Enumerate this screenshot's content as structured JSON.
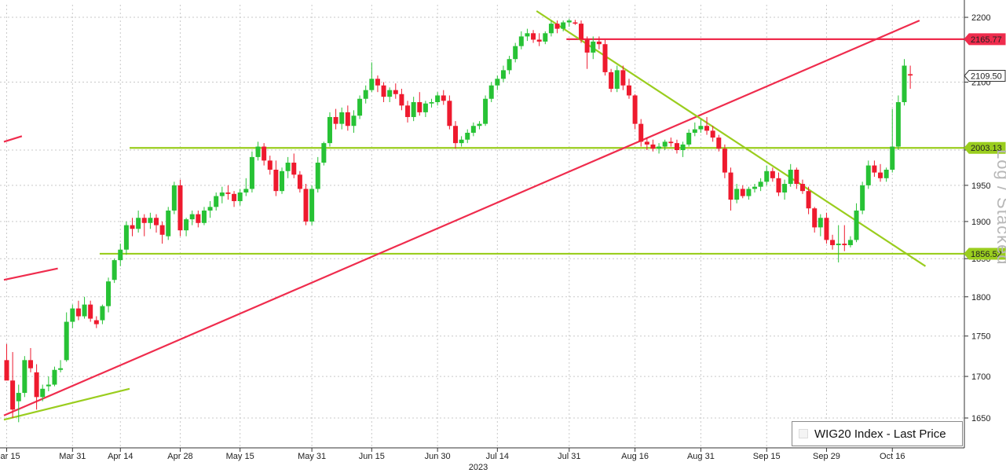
{
  "chart_data": {
    "type": "candlestick",
    "legend": "WIG20 Index - Last Price",
    "watermark": "Log / Stacked",
    "year_label": "2023",
    "y_ticks": [
      1650,
      1700,
      1750,
      1800,
      1850,
      1900,
      1950,
      2000,
      2100,
      2200
    ],
    "x_ticks": [
      {
        "label": "Mar 15",
        "i": 0
      },
      {
        "label": "Mar 31",
        "i": 11
      },
      {
        "label": "Apr 14",
        "i": 19
      },
      {
        "label": "Apr 28",
        "i": 29
      },
      {
        "label": "May 15",
        "i": 39
      },
      {
        "label": "May 31",
        "i": 51
      },
      {
        "label": "Jun 15",
        "i": 61
      },
      {
        "label": "Jun 30",
        "i": 72
      },
      {
        "label": "Jul 14",
        "i": 82
      },
      {
        "label": "Jul 31",
        "i": 94
      },
      {
        "label": "Aug 16",
        "i": 105
      },
      {
        "label": "Aug 31",
        "i": 116
      },
      {
        "label": "Sep 15",
        "i": 127
      },
      {
        "label": "Sep 29",
        "i": 137
      },
      {
        "label": "Oct 16",
        "i": 148
      }
    ],
    "ylim": [
      1615,
      2220
    ],
    "price_tags": [
      {
        "value": 2165.77,
        "label": "2165.77",
        "color": "#ef2c4d"
      },
      {
        "value": 2109.5,
        "label": "2109.50",
        "color": "#ffffff"
      },
      {
        "value": 2003.13,
        "label": "2003.13",
        "color": "#9acd1e"
      },
      {
        "value": 1856.52,
        "label": "1856.52",
        "color": "#9acd1e"
      }
    ],
    "hlines": [
      {
        "value": 2165.77,
        "i_from": 94,
        "color": "#ef2c4d"
      },
      {
        "value": 2003.13,
        "i_from": 21,
        "color": "#9acd1e"
      },
      {
        "value": 1856.52,
        "i_from": 16,
        "color": "#9acd1e"
      }
    ],
    "trendlines": [
      {
        "i1": 0,
        "v1": 1653,
        "i2": 153,
        "v2": 2195,
        "color": "#ef2c4d"
      },
      {
        "i1": 89,
        "v1": 2210,
        "i2": 154,
        "v2": 1840,
        "color": "#9acd1e"
      },
      {
        "i1": 0,
        "v1": 2012,
        "i2": 3,
        "v2": 2020,
        "color": "#ef2c4d"
      },
      {
        "i1": 0,
        "v1": 1822,
        "i2": 9,
        "v2": 1837,
        "color": "#ef2c4d"
      },
      {
        "i1": 0,
        "v1": 1648,
        "i2": 21,
        "v2": 1685,
        "color": "#9acd1e"
      }
    ],
    "candles": [
      [
        1720,
        1740,
        1700,
        1695
      ],
      [
        1695,
        1730,
        1650,
        1660
      ],
      [
        1670,
        1690,
        1645,
        1680
      ],
      [
        1680,
        1725,
        1675,
        1720
      ],
      [
        1720,
        1735,
        1705,
        1710
      ],
      [
        1705,
        1715,
        1660,
        1675
      ],
      [
        1675,
        1690,
        1670,
        1685
      ],
      [
        1688,
        1700,
        1682,
        1690
      ],
      [
        1690,
        1712,
        1688,
        1708
      ],
      [
        1708,
        1720,
        1705,
        1710
      ],
      [
        1720,
        1780,
        1718,
        1768
      ],
      [
        1768,
        1790,
        1760,
        1785
      ],
      [
        1785,
        1795,
        1770,
        1775
      ],
      [
        1775,
        1800,
        1772,
        1790
      ],
      [
        1790,
        1795,
        1768,
        1772
      ],
      [
        1770,
        1775,
        1760,
        1765
      ],
      [
        1770,
        1790,
        1765,
        1788
      ],
      [
        1788,
        1825,
        1780,
        1820
      ],
      [
        1822,
        1850,
        1818,
        1848
      ],
      [
        1848,
        1870,
        1840,
        1862
      ],
      [
        1862,
        1900,
        1855,
        1895
      ],
      [
        1895,
        1905,
        1880,
        1890
      ],
      [
        1890,
        1915,
        1885,
        1905
      ],
      [
        1905,
        1910,
        1880,
        1898
      ],
      [
        1898,
        1912,
        1890,
        1905
      ],
      [
        1905,
        1910,
        1885,
        1895
      ],
      [
        1895,
        1900,
        1870,
        1882
      ],
      [
        1880,
        1920,
        1875,
        1915
      ],
      [
        1915,
        1955,
        1910,
        1950
      ],
      [
        1950,
        1958,
        1880,
        1888
      ],
      [
        1888,
        1905,
        1880,
        1903
      ],
      [
        1903,
        1915,
        1895,
        1910
      ],
      [
        1910,
        1915,
        1892,
        1898
      ],
      [
        1898,
        1920,
        1895,
        1915
      ],
      [
        1915,
        1928,
        1905,
        1920
      ],
      [
        1920,
        1940,
        1915,
        1935
      ],
      [
        1935,
        1948,
        1925,
        1940
      ],
      [
        1940,
        1950,
        1930,
        1938
      ],
      [
        1938,
        1942,
        1920,
        1928
      ],
      [
        1928,
        1945,
        1922,
        1940
      ],
      [
        1940,
        1960,
        1935,
        1945
      ],
      [
        1945,
        1998,
        1940,
        1990
      ],
      [
        1990,
        2012,
        1985,
        2005
      ],
      [
        2005,
        2010,
        1978,
        1985
      ],
      [
        1985,
        1992,
        1965,
        1972
      ],
      [
        1972,
        1985,
        1935,
        1942
      ],
      [
        1942,
        1975,
        1938,
        1970
      ],
      [
        1970,
        1990,
        1960,
        1982
      ],
      [
        1982,
        1995,
        1960,
        1965
      ],
      [
        1965,
        1970,
        1940,
        1945
      ],
      [
        1945,
        1952,
        1895,
        1900
      ],
      [
        1900,
        1950,
        1895,
        1945
      ],
      [
        1945,
        1990,
        1940,
        1982
      ],
      [
        1982,
        2012,
        1978,
        2010
      ],
      [
        2010,
        2055,
        2005,
        2048
      ],
      [
        2048,
        2060,
        2030,
        2038
      ],
      [
        2038,
        2062,
        2030,
        2055
      ],
      [
        2055,
        2065,
        2028,
        2035
      ],
      [
        2035,
        2058,
        2025,
        2050
      ],
      [
        2050,
        2080,
        2045,
        2075
      ],
      [
        2075,
        2095,
        2068,
        2088
      ],
      [
        2088,
        2130,
        2085,
        2105
      ],
      [
        2105,
        2110,
        2085,
        2095
      ],
      [
        2095,
        2100,
        2070,
        2078
      ],
      [
        2078,
        2092,
        2070,
        2088
      ],
      [
        2088,
        2098,
        2075,
        2082
      ],
      [
        2082,
        2090,
        2058,
        2065
      ],
      [
        2065,
        2072,
        2040,
        2048
      ],
      [
        2048,
        2078,
        2042,
        2070
      ],
      [
        2070,
        2085,
        2050,
        2055
      ],
      [
        2055,
        2072,
        2048,
        2068
      ],
      [
        2068,
        2075,
        2062,
        2070
      ],
      [
        2070,
        2085,
        2065,
        2080
      ],
      [
        2080,
        2088,
        2066,
        2072
      ],
      [
        2072,
        2080,
        2030,
        2035
      ],
      [
        2035,
        2042,
        2002,
        2010
      ],
      [
        2010,
        2020,
        2005,
        2015
      ],
      [
        2015,
        2030,
        2010,
        2025
      ],
      [
        2025,
        2040,
        2020,
        2035
      ],
      [
        2035,
        2042,
        2030,
        2038
      ],
      [
        2038,
        2080,
        2035,
        2075
      ],
      [
        2075,
        2100,
        2070,
        2095
      ],
      [
        2095,
        2110,
        2088,
        2105
      ],
      [
        2105,
        2125,
        2100,
        2118
      ],
      [
        2118,
        2140,
        2112,
        2135
      ],
      [
        2135,
        2160,
        2130,
        2155
      ],
      [
        2155,
        2178,
        2150,
        2170
      ],
      [
        2170,
        2182,
        2163,
        2175
      ],
      [
        2175,
        2180,
        2160,
        2165
      ],
      [
        2165,
        2175,
        2155,
        2162
      ],
      [
        2162,
        2178,
        2158,
        2175
      ],
      [
        2175,
        2195,
        2170,
        2190
      ],
      [
        2190,
        2195,
        2175,
        2182
      ],
      [
        2182,
        2195,
        2178,
        2192
      ],
      [
        2192,
        2198,
        2185,
        2195
      ],
      [
        2192,
        2196,
        2188,
        2190
      ],
      [
        2190,
        2195,
        2160,
        2165
      ],
      [
        2165,
        2170,
        2120,
        2145
      ],
      [
        2145,
        2170,
        2135,
        2162
      ],
      [
        2162,
        2170,
        2150,
        2158
      ],
      [
        2158,
        2165,
        2110,
        2115
      ],
      [
        2115,
        2120,
        2085,
        2090
      ],
      [
        2090,
        2125,
        2085,
        2118
      ],
      [
        2118,
        2125,
        2088,
        2095
      ],
      [
        2095,
        2105,
        2075,
        2080
      ],
      [
        2080,
        2082,
        2030,
        2038
      ],
      [
        2038,
        2045,
        2005,
        2012
      ],
      [
        2012,
        2018,
        2000,
        2008
      ],
      [
        2008,
        2015,
        1998,
        2002
      ],
      [
        2002,
        2010,
        1995,
        2005
      ],
      [
        2005,
        2015,
        2000,
        2012
      ],
      [
        2012,
        2018,
        2005,
        2010
      ],
      [
        2010,
        2015,
        1995,
        2000
      ],
      [
        2000,
        2012,
        1990,
        2008
      ],
      [
        2008,
        2030,
        2005,
        2025
      ],
      [
        2025,
        2040,
        2020,
        2030
      ],
      [
        2030,
        2045,
        2025,
        2035
      ],
      [
        2035,
        2048,
        2022,
        2028
      ],
      [
        2028,
        2035,
        2012,
        2018
      ],
      [
        2018,
        2022,
        1998,
        2002
      ],
      [
        2002,
        2008,
        1960,
        1968
      ],
      [
        1968,
        1975,
        1915,
        1930
      ],
      [
        1930,
        1952,
        1925,
        1945
      ],
      [
        1945,
        1950,
        1932,
        1935
      ],
      [
        1935,
        1948,
        1930,
        1945
      ],
      [
        1945,
        1952,
        1940,
        1948
      ],
      [
        1948,
        1960,
        1942,
        1955
      ],
      [
        1955,
        1978,
        1950,
        1970
      ],
      [
        1970,
        1975,
        1955,
        1960
      ],
      [
        1960,
        1968,
        1935,
        1940
      ],
      [
        1940,
        1958,
        1930,
        1952
      ],
      [
        1952,
        1980,
        1948,
        1972
      ],
      [
        1972,
        1975,
        1945,
        1952
      ],
      [
        1952,
        1958,
        1938,
        1942
      ],
      [
        1942,
        1948,
        1910,
        1918
      ],
      [
        1918,
        1920,
        1885,
        1892
      ],
      [
        1892,
        1910,
        1880,
        1905
      ],
      [
        1905,
        1912,
        1870,
        1875
      ],
      [
        1875,
        1882,
        1862,
        1868
      ],
      [
        1868,
        1895,
        1845,
        1870
      ],
      [
        1870,
        1895,
        1860,
        1868
      ],
      [
        1868,
        1880,
        1865,
        1875
      ],
      [
        1875,
        1925,
        1872,
        1915
      ],
      [
        1915,
        1955,
        1910,
        1950
      ],
      [
        1950,
        1985,
        1945,
        1978
      ],
      [
        1978,
        1985,
        1962,
        1968
      ],
      [
        1968,
        1980,
        1955,
        1960
      ],
      [
        1960,
        1975,
        1955,
        1972
      ],
      [
        1972,
        2060,
        1968,
        2005
      ],
      [
        2005,
        2080,
        2000,
        2070
      ],
      [
        2070,
        2135,
        2065,
        2125
      ],
      [
        2112,
        2125,
        2090,
        2110
      ]
    ]
  }
}
